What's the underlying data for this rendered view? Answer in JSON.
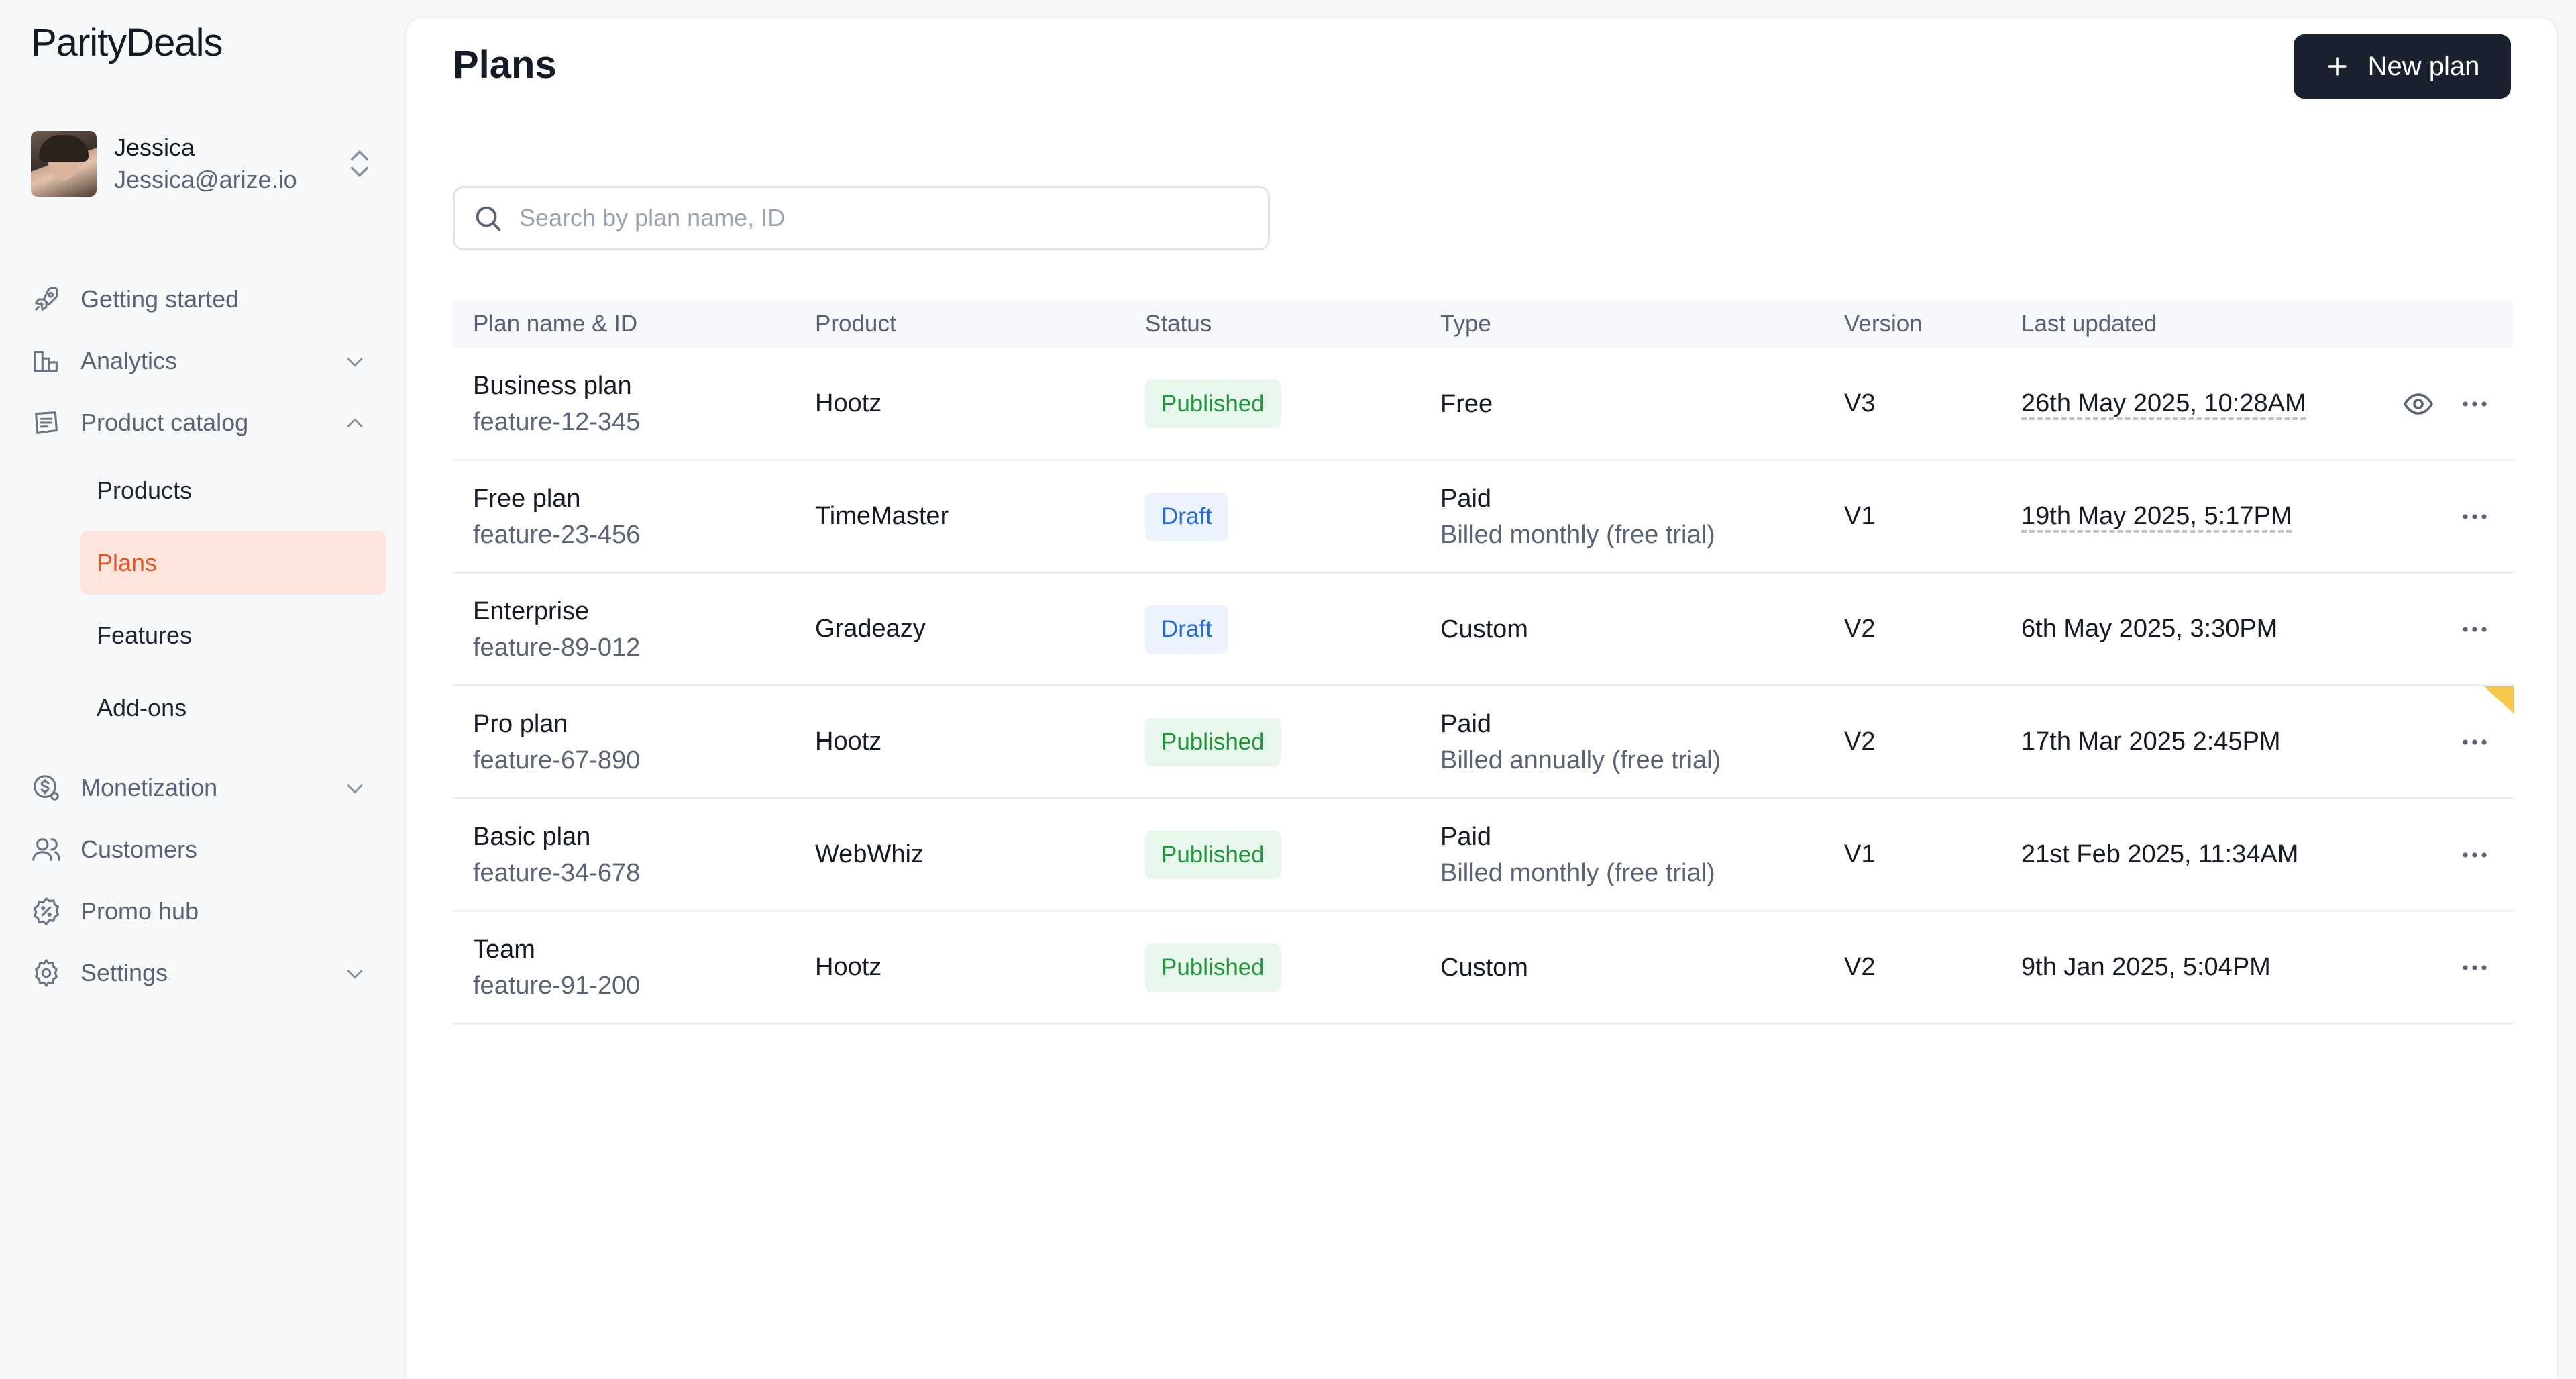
{
  "brand": {
    "logo": "ParityDeals"
  },
  "account": {
    "name": "Jessica",
    "email": "Jessica@arize.io"
  },
  "nav": {
    "getting_started": "Getting started",
    "analytics": "Analytics",
    "product_catalog": "Product catalog",
    "catalog_items": [
      "Products",
      "Plans",
      "Features",
      "Add-ons"
    ],
    "monetization": "Monetization",
    "customers": "Customers",
    "promo_hub": "Promo hub",
    "settings": "Settings",
    "active_item": "Plans"
  },
  "page": {
    "title": "Plans",
    "new_plan_label": "New plan",
    "search_placeholder": "Search by plan name, ID"
  },
  "table": {
    "headers": [
      "Plan name & ID",
      "Product",
      "Status",
      "Type",
      "Version",
      "Last updated"
    ],
    "rows": [
      {
        "name": "Business plan",
        "id": "feature-12-345",
        "product": "Hootz",
        "status": "Published",
        "type": "Free",
        "type_detail": "",
        "version": "V3",
        "updated": "26th May 2025, 10:28AM"
      },
      {
        "name": "Free plan",
        "id": "feature-23-456",
        "product": "TimeMaster",
        "status": "Draft",
        "type": "Paid",
        "type_detail": "Billed monthly (free trial)",
        "version": "V1",
        "updated": "19th May 2025, 5:17PM"
      },
      {
        "name": "Enterprise",
        "id": "feature-89-012",
        "product": "Gradeazy",
        "status": "Draft",
        "type": "Custom",
        "type_detail": "",
        "version": "V2",
        "updated": "6th May 2025, 3:30PM"
      },
      {
        "name": "Pro plan",
        "id": "feature-67-890",
        "product": "Hootz",
        "status": "Published",
        "type": "Paid",
        "type_detail": "Billed annually (free trial)",
        "version": "V2",
        "updated": "17th Mar 2025 2:45PM"
      },
      {
        "name": "Basic plan",
        "id": "feature-34-678",
        "product": "WebWhiz",
        "status": "Published",
        "type": "Paid",
        "type_detail": "Billed monthly (free trial)",
        "version": "V1",
        "updated": "21st Feb 2025, 11:34AM"
      },
      {
        "name": "Team",
        "id": "feature-91-200",
        "product": "Hootz",
        "status": "Published",
        "type": "Custom",
        "type_detail": "",
        "version": "V2",
        "updated": "9th Jan 2025, 5:04PM"
      }
    ]
  },
  "colors": {
    "accent": "#e0552a",
    "accent_bg": "#fde5dc",
    "primary_button": "#1a2230",
    "published_fg": "#23953f",
    "published_bg": "#e8f7ec",
    "draft_fg": "#2568d6",
    "draft_bg": "#eaf3fe"
  },
  "icons": {
    "getting_started": "rocket-icon",
    "analytics": "bar-chart-icon",
    "product_catalog": "catalog-icon",
    "monetization": "dollar-gear-icon",
    "customers": "users-icon",
    "promo_hub": "badge-icon",
    "settings": "gear-icon",
    "search": "search-icon",
    "row_actions": [
      "eye-icon",
      "more-horizontal-icon"
    ]
  }
}
